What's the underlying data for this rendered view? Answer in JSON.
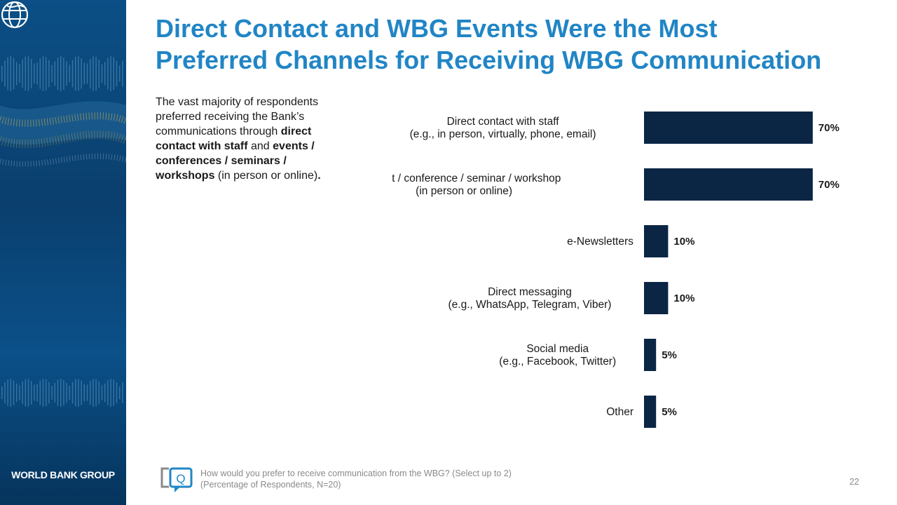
{
  "slide": {
    "title_line1": "Direct Contact and WBG Events Were the Most",
    "title_line2": "Preferred Channels for Receiving WBG Communication",
    "summary": {
      "p1": "The vast majority of respondents preferred receiving the Bank’s communications through ",
      "b1": "direct contact with staff",
      "p2": " and ",
      "b2": "events / conferences / seminars / workshops",
      "p3": " (in person or online)",
      "b3": "."
    },
    "footnote_line1": "How would you prefer to receive communication from the WBG? (Select up to 2)",
    "footnote_line2": "(Percentage of Respondents, N=20)",
    "page_number": "22",
    "logo_text": "WORLD BANK GROUP"
  },
  "colors": {
    "title": "#2185c5",
    "bar": "#0b2545",
    "side_panel": "#0a3f6e"
  },
  "chart_data": {
    "type": "bar",
    "orientation": "horizontal",
    "categories": [
      [
        "Direct contact with staff",
        "(e.g., in person, virtually, phone, email)"
      ],
      [
        "Event / conference / seminar / workshop",
        "(in person or online)"
      ],
      [
        "e-Newsletters"
      ],
      [
        "Direct messaging",
        "(e.g., WhatsApp, Telegram, Viber)"
      ],
      [
        "Social media",
        "(e.g., Facebook, Twitter)"
      ],
      [
        "Other"
      ]
    ],
    "values": [
      70,
      70,
      10,
      10,
      5,
      5
    ],
    "value_labels": [
      "70%",
      "70%",
      "10%",
      "10%",
      "5%",
      "5%"
    ],
    "xlim": [
      0,
      100
    ],
    "grid": false,
    "legend": "none"
  }
}
